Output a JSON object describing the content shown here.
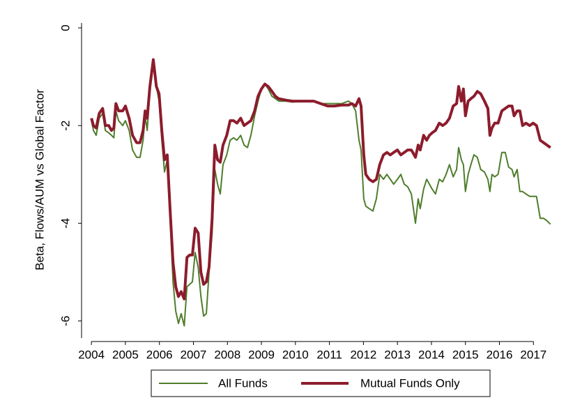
{
  "chart_data": {
    "type": "line",
    "y_label": "Beta, Flows/AUM vs Global Factor",
    "xlim": [
      2003.71,
      2017.65
    ],
    "xticks": [
      2004,
      2005,
      2006,
      2007,
      2008,
      2009,
      2010,
      2011,
      2012,
      2013,
      2014,
      2015,
      2016,
      2017
    ],
    "ylim": [
      -6.35,
      0.1
    ],
    "yticks": [
      0,
      -2,
      -4,
      -6
    ],
    "grid": false,
    "legend": "bottom",
    "x": [
      2004.0,
      2004.06,
      2004.14,
      2004.23,
      2004.33,
      2004.41,
      2004.51,
      2004.59,
      2004.66,
      2004.72,
      2004.8,
      2004.92,
      2005.0,
      2005.11,
      2005.21,
      2005.33,
      2005.43,
      2005.52,
      2005.58,
      2005.64,
      2005.72,
      2005.82,
      2005.91,
      2005.99,
      2006.07,
      2006.15,
      2006.23,
      2006.32,
      2006.4,
      2006.48,
      2006.56,
      2006.64,
      2006.73,
      2006.81,
      2006.89,
      2006.97,
      2007.05,
      2007.14,
      2007.22,
      2007.3,
      2007.38,
      2007.46,
      2007.55,
      2007.63,
      2007.71,
      2007.79,
      2007.87,
      2007.98,
      2008.08,
      2008.18,
      2008.28,
      2008.39,
      2008.49,
      2008.59,
      2008.69,
      2008.8,
      2008.9,
      2009.0,
      2009.1,
      2009.2,
      2009.31,
      2009.41,
      2009.51,
      2009.72,
      2009.92,
      2010.13,
      2010.33,
      2010.54,
      2010.74,
      2010.95,
      2011.15,
      2011.36,
      2011.56,
      2011.66,
      2011.77,
      2011.87,
      2011.93,
      2012.01,
      2012.07,
      2012.17,
      2012.28,
      2012.38,
      2012.48,
      2012.59,
      2012.69,
      2012.79,
      2012.89,
      2013.0,
      2013.1,
      2013.2,
      2013.3,
      2013.41,
      2013.53,
      2013.61,
      2013.67,
      2013.77,
      2013.86,
      2013.94,
      2014.02,
      2014.12,
      2014.23,
      2014.33,
      2014.43,
      2014.53,
      2014.64,
      2014.74,
      2014.8,
      2014.88,
      2014.94,
      2015.0,
      2015.08,
      2015.16,
      2015.25,
      2015.35,
      2015.45,
      2015.56,
      2015.66,
      2015.72,
      2015.78,
      2015.86,
      2015.96,
      2016.07,
      2016.17,
      2016.27,
      2016.37,
      2016.43,
      2016.52,
      2016.6,
      2016.68,
      2016.78,
      2016.89,
      2016.99,
      2017.09,
      2017.2,
      2017.3,
      2017.4,
      2017.5
    ],
    "series": [
      {
        "name": "All Funds",
        "color": "#4f7d2b",
        "width": 2,
        "values": [
          -1.9,
          -2.1,
          -2.2,
          -1.85,
          -1.75,
          -2.1,
          -2.15,
          -2.2,
          -2.25,
          -1.7,
          -1.9,
          -2.0,
          -1.9,
          -2.1,
          -2.5,
          -2.65,
          -2.65,
          -2.3,
          -1.8,
          -2.1,
          -1.3,
          -0.7,
          -1.2,
          -1.5,
          -2.3,
          -2.95,
          -2.7,
          -4.0,
          -5.2,
          -5.8,
          -6.05,
          -5.85,
          -6.1,
          -5.3,
          -5.25,
          -5.2,
          -4.6,
          -4.9,
          -5.5,
          -5.9,
          -5.85,
          -5.0,
          -4.2,
          -2.9,
          -3.2,
          -3.4,
          -2.8,
          -2.6,
          -2.3,
          -2.25,
          -2.3,
          -2.2,
          -2.4,
          -2.45,
          -2.2,
          -1.8,
          -1.5,
          -1.25,
          -1.15,
          -1.25,
          -1.4,
          -1.45,
          -1.5,
          -1.5,
          -1.52,
          -1.5,
          -1.5,
          -1.5,
          -1.55,
          -1.55,
          -1.55,
          -1.55,
          -1.5,
          -1.55,
          -1.7,
          -2.3,
          -2.5,
          -3.5,
          -3.65,
          -3.7,
          -3.75,
          -3.5,
          -3.0,
          -3.1,
          -3.0,
          -3.1,
          -3.2,
          -3.1,
          -3.0,
          -3.2,
          -3.25,
          -3.4,
          -4.0,
          -3.5,
          -3.7,
          -3.3,
          -3.1,
          -3.2,
          -3.3,
          -3.4,
          -3.1,
          -3.15,
          -3.0,
          -2.8,
          -3.05,
          -2.9,
          -2.45,
          -2.7,
          -2.8,
          -3.35,
          -3.0,
          -2.8,
          -2.6,
          -2.65,
          -2.9,
          -2.95,
          -3.1,
          -3.35,
          -3.0,
          -3.05,
          -3.0,
          -2.55,
          -2.55,
          -2.85,
          -2.9,
          -3.05,
          -2.9,
          -3.35,
          -3.35,
          -3.4,
          -3.45,
          -3.45,
          -3.45,
          -3.9,
          -3.9,
          -3.95,
          -4.02
        ]
      },
      {
        "name": "Mutual Funds Only",
        "color": "#8c1c2c",
        "width": 4,
        "values": [
          -1.85,
          -2.0,
          -2.05,
          -1.75,
          -1.65,
          -2.0,
          -2.0,
          -2.1,
          -2.05,
          -1.55,
          -1.7,
          -1.7,
          -1.6,
          -1.85,
          -2.2,
          -2.35,
          -2.35,
          -2.1,
          -1.7,
          -1.85,
          -1.2,
          -0.65,
          -1.2,
          -1.35,
          -2.1,
          -2.7,
          -2.6,
          -3.8,
          -4.8,
          -5.3,
          -5.5,
          -5.4,
          -5.55,
          -4.7,
          -4.65,
          -4.65,
          -4.1,
          -4.2,
          -5.0,
          -5.25,
          -5.2,
          -4.9,
          -3.9,
          -2.4,
          -2.7,
          -2.75,
          -2.4,
          -2.2,
          -1.9,
          -1.9,
          -1.95,
          -1.85,
          -2.0,
          -1.95,
          -1.9,
          -1.7,
          -1.4,
          -1.25,
          -1.15,
          -1.2,
          -1.3,
          -1.4,
          -1.45,
          -1.48,
          -1.5,
          -1.5,
          -1.5,
          -1.5,
          -1.55,
          -1.6,
          -1.6,
          -1.58,
          -1.58,
          -1.55,
          -1.6,
          -1.45,
          -1.6,
          -2.6,
          -3.0,
          -3.1,
          -3.15,
          -3.1,
          -2.8,
          -2.6,
          -2.55,
          -2.6,
          -2.55,
          -2.5,
          -2.6,
          -2.55,
          -2.5,
          -2.5,
          -2.65,
          -2.4,
          -2.5,
          -2.2,
          -2.3,
          -2.2,
          -2.15,
          -2.1,
          -1.95,
          -2.0,
          -1.95,
          -1.85,
          -1.6,
          -1.55,
          -1.2,
          -1.5,
          -1.25,
          -1.8,
          -1.5,
          -1.45,
          -1.4,
          -1.3,
          -1.35,
          -1.5,
          -1.65,
          -2.2,
          -2.05,
          -1.95,
          -1.95,
          -1.7,
          -1.65,
          -1.6,
          -1.6,
          -1.8,
          -1.7,
          -1.7,
          -2.0,
          -1.95,
          -2.0,
          -1.95,
          -2.0,
          -2.3,
          -2.35,
          -2.4,
          -2.45
        ]
      }
    ]
  }
}
